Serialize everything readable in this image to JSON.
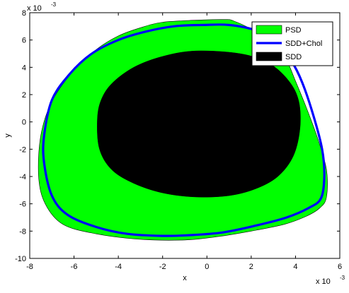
{
  "chart_data": {
    "type": "area",
    "title": "",
    "xlabel": "x",
    "ylabel": "y",
    "xlim": [
      -8,
      6
    ],
    "ylim": [
      -10,
      8
    ],
    "x_exponent": "x 10",
    "x_exponent_power": "-3",
    "y_exponent": "x 10",
    "y_exponent_power": "-3",
    "x_ticks": [
      -8,
      -6,
      -4,
      -2,
      0,
      2,
      4,
      6
    ],
    "x_tick_labels": [
      "-8",
      "-6",
      "-4",
      "-2",
      "0",
      "2",
      "4",
      "6"
    ],
    "y_ticks": [
      -10,
      -8,
      -6,
      -4,
      -2,
      0,
      2,
      4,
      6,
      8
    ],
    "y_tick_labels": [
      "-10",
      "-8",
      "-6",
      "-4",
      "-2",
      "0",
      "2",
      "4",
      "6",
      "8"
    ],
    "grid": false,
    "legend_position": "top-right",
    "series": [
      {
        "name": "PSD",
        "kind": "filled-region",
        "color": "#00ff00",
        "x": [
          0.8,
          1.2,
          2.0,
          3.0,
          3.6,
          4.0,
          4.5,
          5.0,
          5.4,
          5.4,
          5.1,
          4.5,
          3.5,
          2.0,
          0.5,
          -1.0,
          -3.0,
          -5.0,
          -6.5,
          -7.3,
          -7.6,
          -7.5,
          -7.0,
          -6.0,
          -5.0,
          -4.0,
          -3.0,
          -2.0,
          -0.5
        ],
        "y": [
          7.5,
          7.4,
          6.8,
          5.8,
          4.5,
          3.0,
          1.0,
          -1.2,
          -3.5,
          -5.5,
          -6.3,
          -6.9,
          -7.5,
          -8.0,
          -8.4,
          -8.65,
          -8.6,
          -8.2,
          -7.5,
          -6.0,
          -4.0,
          -1.0,
          1.5,
          3.8,
          5.3,
          6.3,
          6.9,
          7.3,
          7.45
        ]
      },
      {
        "name": "SDD+Chol",
        "kind": "boundary-curve",
        "color": "#0000ff",
        "x": [
          -7.35,
          -7.0,
          -6.2,
          -5.2,
          -4.0,
          -2.8,
          -1.5,
          -0.2,
          1.0,
          2.2,
          3.1,
          3.8,
          4.3,
          4.8,
          5.2,
          5.3,
          5.15,
          4.6,
          3.6,
          2.2,
          0.7,
          -0.8,
          -2.0,
          -3.6,
          -5.0,
          -6.3,
          -7.0,
          -7.35
        ],
        "y": [
          -1.0,
          1.6,
          3.5,
          5.0,
          6.0,
          6.6,
          7.0,
          7.1,
          7.1,
          6.7,
          5.8,
          4.5,
          2.9,
          0.5,
          -2.0,
          -4.0,
          -5.6,
          -6.3,
          -7.0,
          -7.6,
          -8.1,
          -8.3,
          -8.35,
          -8.2,
          -7.7,
          -6.8,
          -5.4,
          -3.0
        ]
      },
      {
        "name": "SDD",
        "kind": "filled-region",
        "color": "#000000",
        "x": [
          -0.5,
          1.5,
          2.8,
          3.7,
          4.15,
          4.2,
          3.9,
          3.2,
          2.2,
          1.0,
          -0.5,
          -2.0,
          -3.3,
          -4.3,
          -4.85,
          -4.95,
          -4.8,
          -4.3,
          -3.3,
          -2.0
        ],
        "y": [
          5.2,
          5.0,
          4.3,
          3.0,
          1.5,
          -0.5,
          -2.5,
          -4.0,
          -4.9,
          -5.4,
          -5.5,
          -5.2,
          -4.5,
          -3.5,
          -2.0,
          0.0,
          1.5,
          2.8,
          4.0,
          4.8
        ]
      }
    ]
  }
}
